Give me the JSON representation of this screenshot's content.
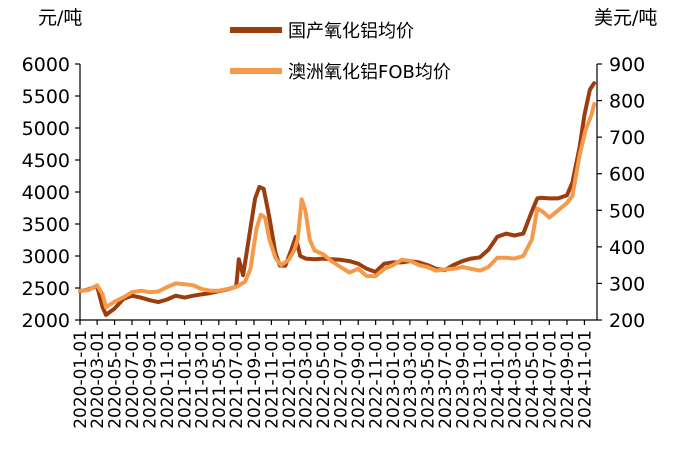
{
  "chart_data": {
    "type": "line",
    "left_unit": "元/吨",
    "right_unit": "美元/吨",
    "y_left": {
      "min": 2000,
      "max": 6000,
      "ticks": [
        "2000",
        "2500",
        "3000",
        "3500",
        "4000",
        "4500",
        "5000",
        "5500",
        "6000"
      ]
    },
    "y_right": {
      "min": 200,
      "max": 900,
      "ticks": [
        "200",
        "300",
        "400",
        "500",
        "600",
        "700",
        "800",
        "900"
      ]
    },
    "x_ticks": [
      "2020-01-01",
      "2020-03-01",
      "2020-05-01",
      "2020-07-01",
      "2020-09-01",
      "2020-11-01",
      "2021-01-01",
      "2021-03-01",
      "2021-05-01",
      "2021-07-01",
      "2021-09-01",
      "2021-11-01",
      "2022-01-01",
      "2022-03-01",
      "2022-05-01",
      "2022-07-01",
      "2022-09-01",
      "2022-11-01",
      "2023-01-01",
      "2023-03-01",
      "2023-05-01",
      "2023-07-01",
      "2023-09-01",
      "2023-11-01",
      "2024-01-01",
      "2024-03-01",
      "2024-05-01",
      "2024-07-01",
      "2024-09-01",
      "2024-11-01"
    ],
    "grid": false,
    "legend_placement": "top-center",
    "series": [
      {
        "name": "国产氧化铝均价",
        "axis": "left",
        "color": "#9c3d0e",
        "points": [
          [
            "2020-01-01",
            2450
          ],
          [
            "2020-02-01",
            2480
          ],
          [
            "2020-03-01",
            2530
          ],
          [
            "2020-03-20",
            2200
          ],
          [
            "2020-04-01",
            2080
          ],
          [
            "2020-05-01",
            2180
          ],
          [
            "2020-06-01",
            2330
          ],
          [
            "2020-07-01",
            2380
          ],
          [
            "2020-08-01",
            2350
          ],
          [
            "2020-09-01",
            2310
          ],
          [
            "2020-10-01",
            2280
          ],
          [
            "2020-11-01",
            2320
          ],
          [
            "2020-12-01",
            2380
          ],
          [
            "2021-01-01",
            2350
          ],
          [
            "2021-02-01",
            2380
          ],
          [
            "2021-03-01",
            2400
          ],
          [
            "2021-04-01",
            2420
          ],
          [
            "2021-05-01",
            2450
          ],
          [
            "2021-06-01",
            2480
          ],
          [
            "2021-07-01",
            2520
          ],
          [
            "2021-07-10",
            2950
          ],
          [
            "2021-07-25",
            2700
          ],
          [
            "2021-08-15",
            3300
          ],
          [
            "2021-09-05",
            3900
          ],
          [
            "2021-09-20",
            4080
          ],
          [
            "2021-10-05",
            4050
          ],
          [
            "2021-10-25",
            3600
          ],
          [
            "2021-11-15",
            3050
          ],
          [
            "2021-12-01",
            2850
          ],
          [
            "2021-12-20",
            2850
          ],
          [
            "2022-01-10",
            3100
          ],
          [
            "2022-01-25",
            3300
          ],
          [
            "2022-02-10",
            3000
          ],
          [
            "2022-03-01",
            2960
          ],
          [
            "2022-04-01",
            2950
          ],
          [
            "2022-05-01",
            2960
          ],
          [
            "2022-06-01",
            2950
          ],
          [
            "2022-07-01",
            2940
          ],
          [
            "2022-08-01",
            2920
          ],
          [
            "2022-09-01",
            2880
          ],
          [
            "2022-10-01",
            2800
          ],
          [
            "2022-11-01",
            2750
          ],
          [
            "2022-12-01",
            2880
          ],
          [
            "2023-01-01",
            2900
          ],
          [
            "2023-02-01",
            2900
          ],
          [
            "2023-03-01",
            2920
          ],
          [
            "2023-04-01",
            2900
          ],
          [
            "2023-05-01",
            2860
          ],
          [
            "2023-06-01",
            2800
          ],
          [
            "2023-07-01",
            2780
          ],
          [
            "2023-08-01",
            2860
          ],
          [
            "2023-09-01",
            2920
          ],
          [
            "2023-10-01",
            2960
          ],
          [
            "2023-11-01",
            2980
          ],
          [
            "2023-12-01",
            3100
          ],
          [
            "2024-01-01",
            3300
          ],
          [
            "2024-02-01",
            3350
          ],
          [
            "2024-03-01",
            3320
          ],
          [
            "2024-04-01",
            3350
          ],
          [
            "2024-05-01",
            3700
          ],
          [
            "2024-05-20",
            3900
          ],
          [
            "2024-06-01",
            3910
          ],
          [
            "2024-07-01",
            3900
          ],
          [
            "2024-08-01",
            3900
          ],
          [
            "2024-09-01",
            3950
          ],
          [
            "2024-09-20",
            4150
          ],
          [
            "2024-10-15",
            4700
          ],
          [
            "2024-11-01",
            5200
          ],
          [
            "2024-11-20",
            5600
          ],
          [
            "2024-12-05",
            5700
          ]
        ]
      },
      {
        "name": "澳洲氧化铝FOB均价",
        "axis": "right",
        "color": "#f59a4a",
        "points": [
          [
            "2020-01-01",
            280
          ],
          [
            "2020-02-01",
            282
          ],
          [
            "2020-03-01",
            295
          ],
          [
            "2020-03-20",
            270
          ],
          [
            "2020-04-01",
            235
          ],
          [
            "2020-05-01",
            250
          ],
          [
            "2020-06-01",
            262
          ],
          [
            "2020-07-01",
            276
          ],
          [
            "2020-08-01",
            280
          ],
          [
            "2020-09-01",
            276
          ],
          [
            "2020-10-01",
            278
          ],
          [
            "2020-11-01",
            290
          ],
          [
            "2020-12-01",
            300
          ],
          [
            "2021-01-01",
            298
          ],
          [
            "2021-02-01",
            295
          ],
          [
            "2021-03-01",
            285
          ],
          [
            "2021-04-01",
            280
          ],
          [
            "2021-05-01",
            280
          ],
          [
            "2021-06-01",
            285
          ],
          [
            "2021-07-01",
            290
          ],
          [
            "2021-08-01",
            305
          ],
          [
            "2021-08-20",
            340
          ],
          [
            "2021-09-10",
            450
          ],
          [
            "2021-09-25",
            488
          ],
          [
            "2021-10-10",
            480
          ],
          [
            "2021-10-25",
            420
          ],
          [
            "2021-11-15",
            370
          ],
          [
            "2021-12-05",
            350
          ],
          [
            "2022-01-01",
            365
          ],
          [
            "2022-01-20",
            390
          ],
          [
            "2022-02-01",
            420
          ],
          [
            "2022-02-15",
            530
          ],
          [
            "2022-02-28",
            500
          ],
          [
            "2022-03-15",
            420
          ],
          [
            "2022-04-01",
            390
          ],
          [
            "2022-05-01",
            380
          ],
          [
            "2022-06-01",
            360
          ],
          [
            "2022-07-01",
            345
          ],
          [
            "2022-08-01",
            330
          ],
          [
            "2022-09-01",
            340
          ],
          [
            "2022-10-01",
            320
          ],
          [
            "2022-11-01",
            320
          ],
          [
            "2022-12-01",
            340
          ],
          [
            "2023-01-01",
            350
          ],
          [
            "2023-02-01",
            365
          ],
          [
            "2023-03-01",
            362
          ],
          [
            "2023-04-01",
            350
          ],
          [
            "2023-05-01",
            345
          ],
          [
            "2023-06-01",
            335
          ],
          [
            "2023-07-01",
            338
          ],
          [
            "2023-08-01",
            340
          ],
          [
            "2023-09-01",
            345
          ],
          [
            "2023-10-01",
            340
          ],
          [
            "2023-11-01",
            335
          ],
          [
            "2023-12-01",
            345
          ],
          [
            "2024-01-01",
            370
          ],
          [
            "2024-02-01",
            370
          ],
          [
            "2024-03-01",
            368
          ],
          [
            "2024-04-01",
            375
          ],
          [
            "2024-05-01",
            420
          ],
          [
            "2024-05-20",
            505
          ],
          [
            "2024-06-10",
            495
          ],
          [
            "2024-07-01",
            480
          ],
          [
            "2024-08-01",
            500
          ],
          [
            "2024-09-01",
            520
          ],
          [
            "2024-09-20",
            540
          ],
          [
            "2024-10-15",
            650
          ],
          [
            "2024-11-05",
            720
          ],
          [
            "2024-11-25",
            760
          ],
          [
            "2024-12-05",
            790
          ]
        ]
      }
    ]
  }
}
